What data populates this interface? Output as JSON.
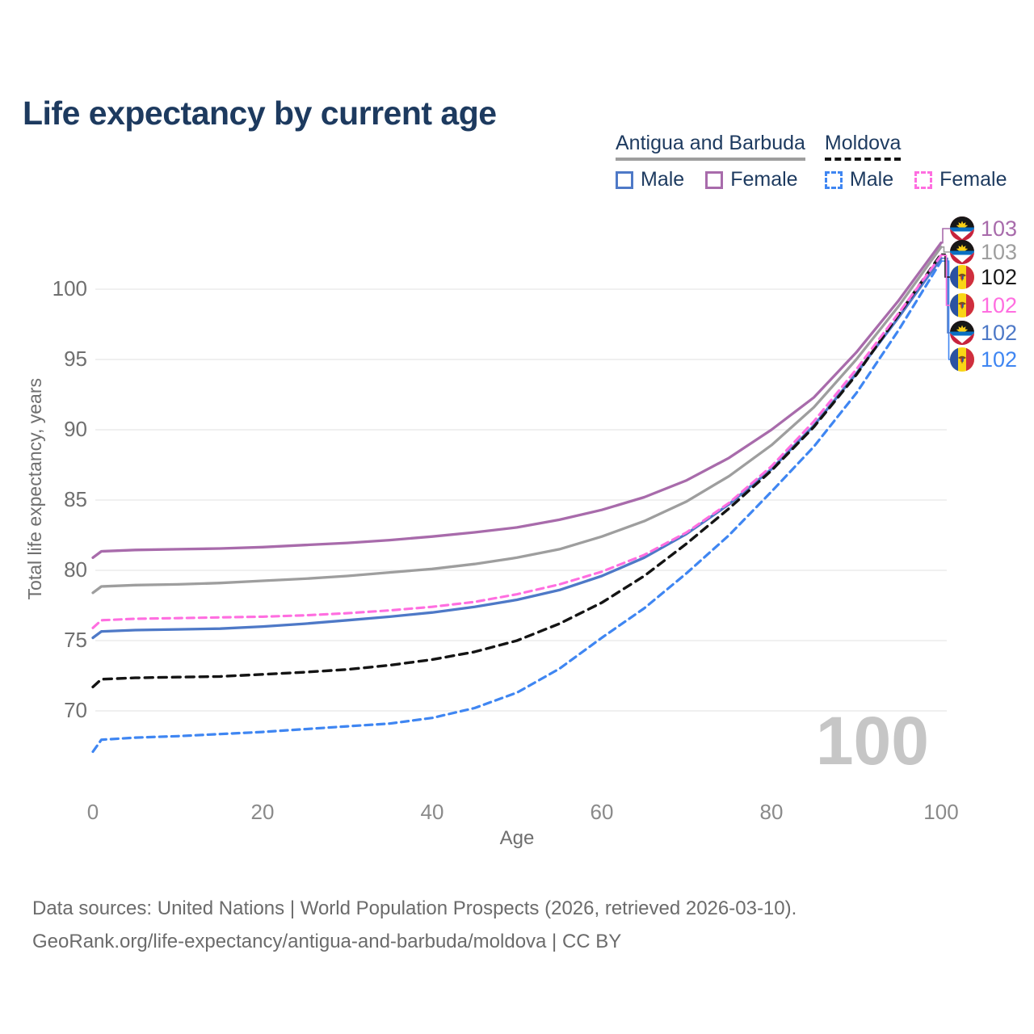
{
  "title": "Life expectancy by current age",
  "legend": {
    "groups": [
      {
        "country": "Antigua and Barbuda",
        "line": {
          "color": "#9e9e9e",
          "dashed": false
        },
        "items": [
          {
            "label": "Male",
            "color": "#4e79c7",
            "dashed": false
          },
          {
            "label": "Female",
            "color": "#a86bab",
            "dashed": false
          }
        ]
      },
      {
        "country": "Moldova",
        "line": {
          "color": "#141414",
          "dashed": true
        },
        "items": [
          {
            "label": "Male",
            "color": "#3f86f2",
            "dashed": true
          },
          {
            "label": "Female",
            "color": "#ff6ee0",
            "dashed": true
          }
        ]
      }
    ]
  },
  "axes": {
    "x": {
      "label": "Age",
      "ticks": [
        0,
        20,
        40,
        60,
        80,
        100
      ]
    },
    "y": {
      "label": "Total life expectancy, years",
      "ticks": [
        70,
        75,
        80,
        85,
        90,
        95,
        100
      ]
    }
  },
  "age_indicator": "100",
  "footer": {
    "line1": "Data sources: United Nations | World Population Prospects (2026, retrieved 2026-03-10).",
    "line2": "GeoRank.org/life-expectancy/antigua-and-barbuda/moldova | CC BY"
  },
  "chart_data": {
    "type": "line",
    "title": "Life expectancy by current age",
    "xlabel": "Age",
    "ylabel": "Total life expectancy, years",
    "xlim": [
      0,
      100
    ],
    "ylim": [
      66,
      104
    ],
    "grid": "horizontal",
    "legend_position": "top-right",
    "x": [
      0,
      1,
      5,
      10,
      15,
      20,
      25,
      30,
      35,
      40,
      45,
      50,
      55,
      60,
      65,
      70,
      75,
      80,
      85,
      90,
      95,
      100
    ],
    "series": [
      {
        "id": "moldova-male",
        "country": "Moldova",
        "sex": "Male",
        "color": "#3f86f2",
        "dash": "9 6",
        "width": 3.2,
        "end_label_row": 5,
        "values": [
          67.1,
          67.95,
          68.1,
          68.2,
          68.35,
          68.5,
          68.7,
          68.9,
          69.1,
          69.5,
          70.2,
          71.3,
          73.0,
          75.2,
          77.3,
          79.8,
          82.5,
          85.6,
          88.8,
          92.6,
          97.1,
          102.0
        ]
      },
      {
        "id": "antigua-male",
        "country": "Antigua and Barbuda",
        "sex": "Male",
        "color": "#4e79c7",
        "dash": null,
        "width": 3.3,
        "end_label_row": 4,
        "values": [
          75.2,
          75.65,
          75.75,
          75.8,
          75.85,
          76.0,
          76.2,
          76.45,
          76.7,
          77.0,
          77.4,
          77.9,
          78.6,
          79.6,
          80.9,
          82.6,
          84.7,
          87.2,
          90.3,
          94.0,
          98.0,
          102.2
        ]
      },
      {
        "id": "moldova-overall",
        "country": "Moldova",
        "sex": "",
        "color": "#141414",
        "dash": "10 7",
        "width": 3.4,
        "end_label_row": 2,
        "values": [
          71.7,
          72.25,
          72.35,
          72.4,
          72.45,
          72.6,
          72.75,
          72.95,
          73.25,
          73.65,
          74.2,
          75.0,
          76.2,
          77.7,
          79.6,
          81.9,
          84.4,
          87.1,
          90.2,
          93.9,
          98.2,
          102.5
        ]
      },
      {
        "id": "moldova-female",
        "country": "Moldova",
        "sex": "Female",
        "color": "#ff6ee0",
        "dash": "9 6",
        "width": 3.1,
        "end_label_row": 3,
        "values": [
          75.9,
          76.45,
          76.55,
          76.6,
          76.65,
          76.7,
          76.8,
          76.95,
          77.15,
          77.4,
          77.75,
          78.3,
          79.0,
          79.9,
          81.1,
          82.7,
          84.8,
          87.4,
          90.6,
          94.3,
          98.3,
          102.4
        ]
      },
      {
        "id": "antigua-overall",
        "country": "Antigua and Barbuda",
        "sex": "",
        "color": "#9e9e9e",
        "dash": null,
        "width": 3.3,
        "end_label_row": 1,
        "values": [
          78.4,
          78.85,
          78.95,
          79.0,
          79.1,
          79.25,
          79.4,
          79.6,
          79.85,
          80.1,
          80.45,
          80.9,
          81.5,
          82.4,
          83.5,
          84.9,
          86.7,
          88.9,
          91.6,
          95.0,
          98.8,
          103.0
        ]
      },
      {
        "id": "antigua-female",
        "country": "Antigua and Barbuda",
        "sex": "Female",
        "color": "#a86bab",
        "dash": null,
        "width": 3.3,
        "end_label_row": 0,
        "values": [
          80.9,
          81.35,
          81.45,
          81.5,
          81.55,
          81.65,
          81.8,
          81.95,
          82.15,
          82.4,
          82.7,
          83.05,
          83.6,
          84.3,
          85.2,
          86.4,
          88.0,
          90.0,
          92.3,
          95.5,
          99.2,
          103.3
        ]
      }
    ],
    "end_labels": [
      {
        "value": "103",
        "color": "#a86bab",
        "flag": "antigua-and-barbuda"
      },
      {
        "value": "103",
        "color": "#9e9e9e",
        "flag": "antigua-and-barbuda"
      },
      {
        "value": "102",
        "color": "#1a1a1a",
        "flag": "moldova"
      },
      {
        "value": "102",
        "color": "#ff6ee0",
        "flag": "moldova"
      },
      {
        "value": "102",
        "color": "#4e79c7",
        "flag": "antigua-and-barbuda"
      },
      {
        "value": "102",
        "color": "#3f86f2",
        "flag": "moldova"
      }
    ]
  }
}
